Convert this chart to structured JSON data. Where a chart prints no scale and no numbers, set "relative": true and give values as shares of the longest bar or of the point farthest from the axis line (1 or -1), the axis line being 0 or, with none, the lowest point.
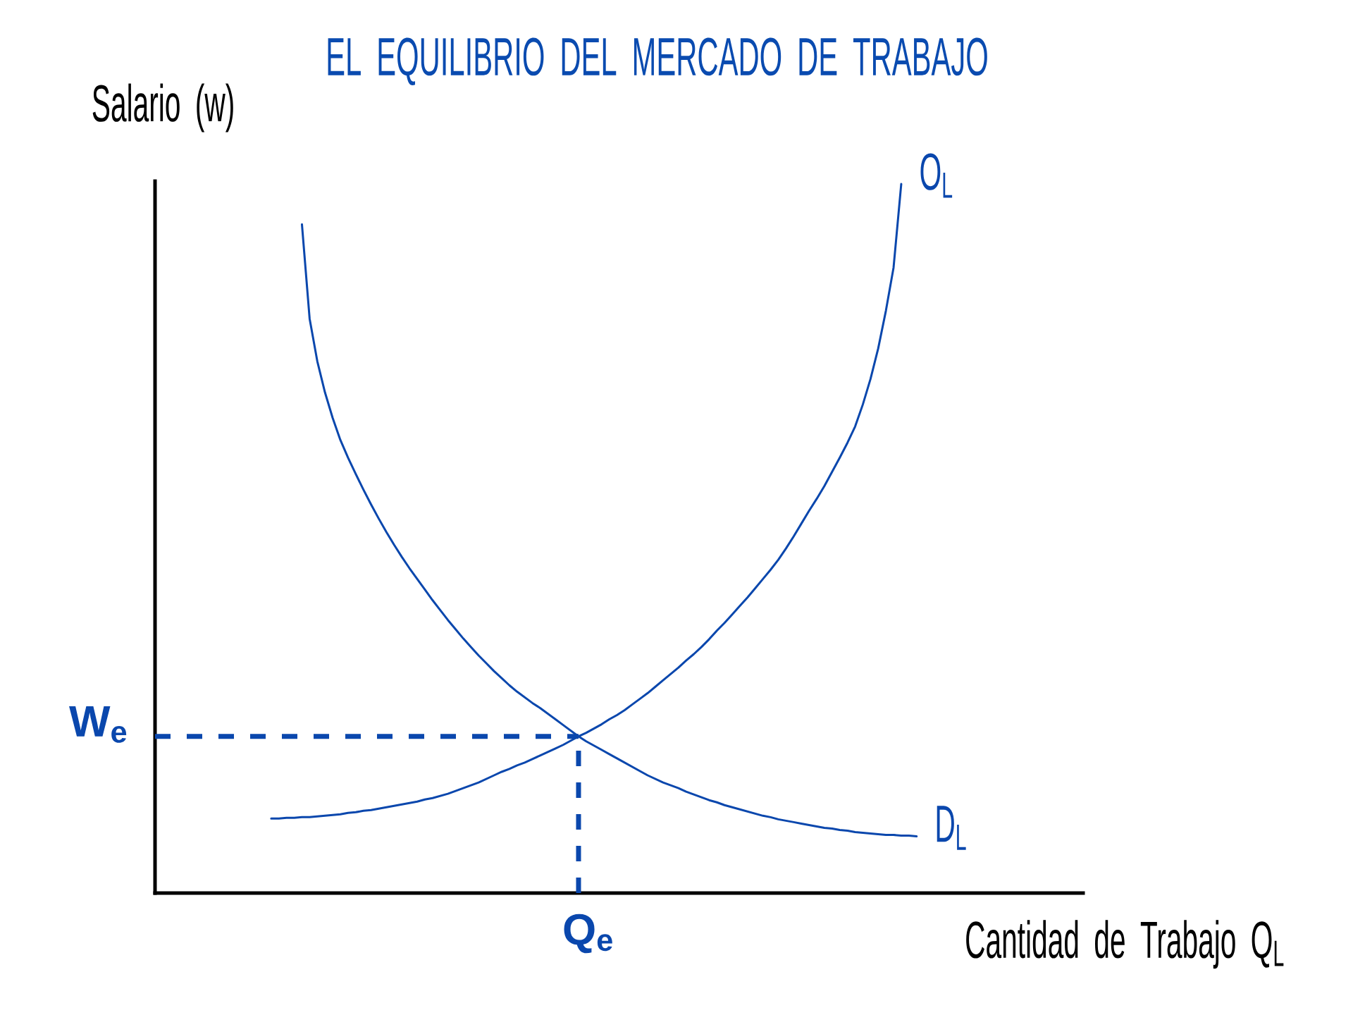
{
  "chart_data": {
    "type": "line",
    "title": "EL EQUILIBRIO DEL MERCADO DE TRABAJO",
    "xlabel": "Cantidad de Trabajo Q$_{L}$",
    "ylabel": "Salario (w)",
    "relative": true,
    "categories": [
      null,
      null,
      null,
      null,
      null,
      null,
      null,
      null,
      null,
      null,
      null,
      null,
      null,
      null,
      null,
      null,
      null,
      null,
      null,
      null,
      null,
      null,
      null,
      null,
      null,
      null,
      null,
      null,
      null,
      null,
      null,
      null,
      null,
      null,
      null,
      null,
      null,
      null,
      null,
      null,
      null,
      null,
      null,
      null,
      null,
      null,
      null,
      null,
      null,
      null,
      null,
      null,
      null,
      null,
      null,
      null,
      null,
      null,
      null,
      null,
      null,
      null,
      null,
      null,
      null,
      null,
      null,
      null,
      null,
      null,
      null,
      null,
      null,
      null,
      null,
      null,
      null,
      null,
      null,
      null,
      null,
      null,
      null,
      null,
      null
    ],
    "series": [
      {
        "name": "O$_{L}$",
        "color": "#0a47ad",
        "values": [
          0.105,
          0.105,
          0.106,
          0.106,
          0.107,
          0.107,
          0.108,
          0.109,
          0.11,
          0.111,
          0.113,
          0.114,
          0.116,
          0.117,
          0.119,
          0.121,
          0.123,
          0.125,
          0.127,
          0.129,
          0.132,
          0.134,
          0.137,
          0.14,
          0.144,
          0.148,
          0.152,
          0.156,
          0.161,
          0.166,
          0.171,
          0.175,
          0.18,
          0.184,
          0.189,
          0.194,
          0.199,
          0.204,
          0.209,
          0.215,
          0.221,
          0.226,
          0.232,
          0.238,
          0.245,
          0.251,
          0.258,
          0.266,
          0.274,
          0.282,
          0.291,
          0.3,
          0.309,
          0.318,
          0.328,
          0.337,
          0.347,
          0.358,
          0.37,
          0.381,
          0.393,
          0.405,
          0.417,
          0.43,
          0.443,
          0.456,
          0.47,
          0.486,
          0.503,
          0.521,
          0.539,
          0.556,
          0.574,
          0.594,
          0.614,
          0.635,
          0.658,
          0.689,
          0.725,
          0.768,
          0.821,
          0.882,
          1.0,
          null,
          null
        ]
      },
      {
        "name": "D$_{L}$",
        "color": "#0a47ad",
        "values": [
          null,
          null,
          null,
          null,
          0.943,
          0.81,
          0.75,
          0.706,
          0.67,
          0.639,
          0.614,
          0.591,
          0.569,
          0.548,
          0.528,
          0.509,
          0.491,
          0.474,
          0.458,
          0.443,
          0.428,
          0.413,
          0.399,
          0.385,
          0.372,
          0.359,
          0.347,
          0.335,
          0.324,
          0.313,
          0.303,
          0.293,
          0.284,
          0.276,
          0.268,
          0.261,
          0.253,
          0.245,
          0.237,
          0.229,
          0.221,
          0.214,
          0.208,
          0.202,
          0.196,
          0.19,
          0.184,
          0.178,
          0.172,
          0.166,
          0.161,
          0.156,
          0.152,
          0.148,
          0.143,
          0.139,
          0.135,
          0.131,
          0.128,
          0.124,
          0.121,
          0.118,
          0.115,
          0.112,
          0.109,
          0.107,
          0.104,
          0.102,
          0.1,
          0.098,
          0.096,
          0.094,
          0.092,
          0.091,
          0.089,
          0.088,
          0.086,
          0.085,
          0.084,
          0.083,
          0.082,
          0.082,
          0.081,
          0.081,
          0.08
        ]
      }
    ],
    "ref_lines": [
      {
        "axis": "y",
        "value": 0.221,
        "label": "W$_{e}$",
        "color": "#0a47ad",
        "line_style": "dashed"
      }
    ],
    "annotations": [
      "Q$_{e}$"
    ]
  }
}
